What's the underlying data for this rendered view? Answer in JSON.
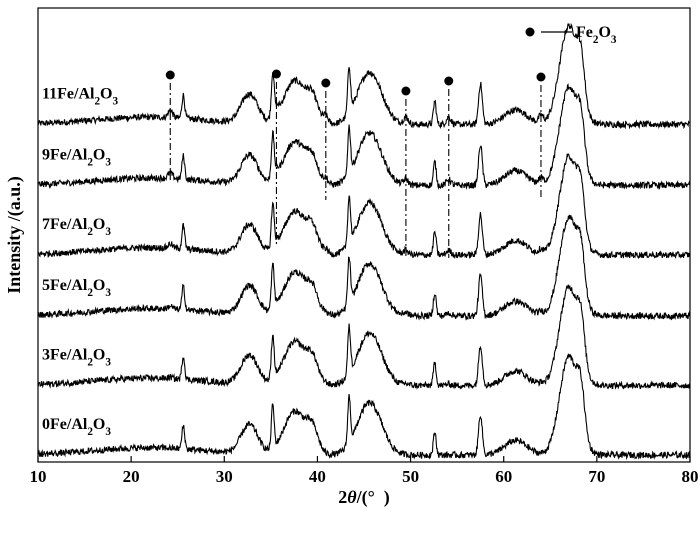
{
  "chart_data": {
    "type": "line",
    "title": "",
    "xlabel": "2θ/(° )",
    "ylabel": "Intensity /(a.u.)",
    "xlim": [
      10,
      80
    ],
    "xticks": [
      10,
      20,
      30,
      40,
      50,
      60,
      70,
      80
    ],
    "yticks_shown": false,
    "grid": false,
    "legend": {
      "position": "top-right",
      "marker": "filled-circle",
      "label": "Fe2O3"
    },
    "marker_peaks_2theta": [
      24.2,
      35.6,
      40.9,
      49.5,
      54.1,
      64.0
    ],
    "series": [
      {
        "name": "11Fe/Al2O3",
        "baseline": 11.4
      },
      {
        "name": "9Fe/Al2O3",
        "baseline": 9.3
      },
      {
        "name": "7Fe/Al2O3",
        "baseline": 6.9
      },
      {
        "name": "5Fe/Al2O3",
        "baseline": 4.8
      },
      {
        "name": "3Fe/Al2O3",
        "baseline": 2.4
      },
      {
        "name": "0Fe/Al2O3",
        "baseline": 0.0
      }
    ],
    "peaks_2theta": [
      {
        "pos": 25.6,
        "height": 0.8,
        "width": 0.15
      },
      {
        "pos": 32.7,
        "height": 1.0,
        "width": 0.9
      },
      {
        "pos": 35.2,
        "height": 1.5,
        "width": 0.15
      },
      {
        "pos": 37.6,
        "height": 1.5,
        "width": 1.2
      },
      {
        "pos": 39.5,
        "height": 0.7,
        "width": 0.6
      },
      {
        "pos": 43.4,
        "height": 1.6,
        "width": 0.15
      },
      {
        "pos": 45.6,
        "height": 1.8,
        "width": 1.3
      },
      {
        "pos": 52.6,
        "height": 0.8,
        "width": 0.15
      },
      {
        "pos": 57.5,
        "height": 1.4,
        "width": 0.2
      },
      {
        "pos": 61.3,
        "height": 0.5,
        "width": 1.2
      },
      {
        "pos": 67.0,
        "height": 3.4,
        "width": 1.0
      },
      {
        "pos": 68.3,
        "height": 1.3,
        "width": 0.4
      }
    ]
  }
}
